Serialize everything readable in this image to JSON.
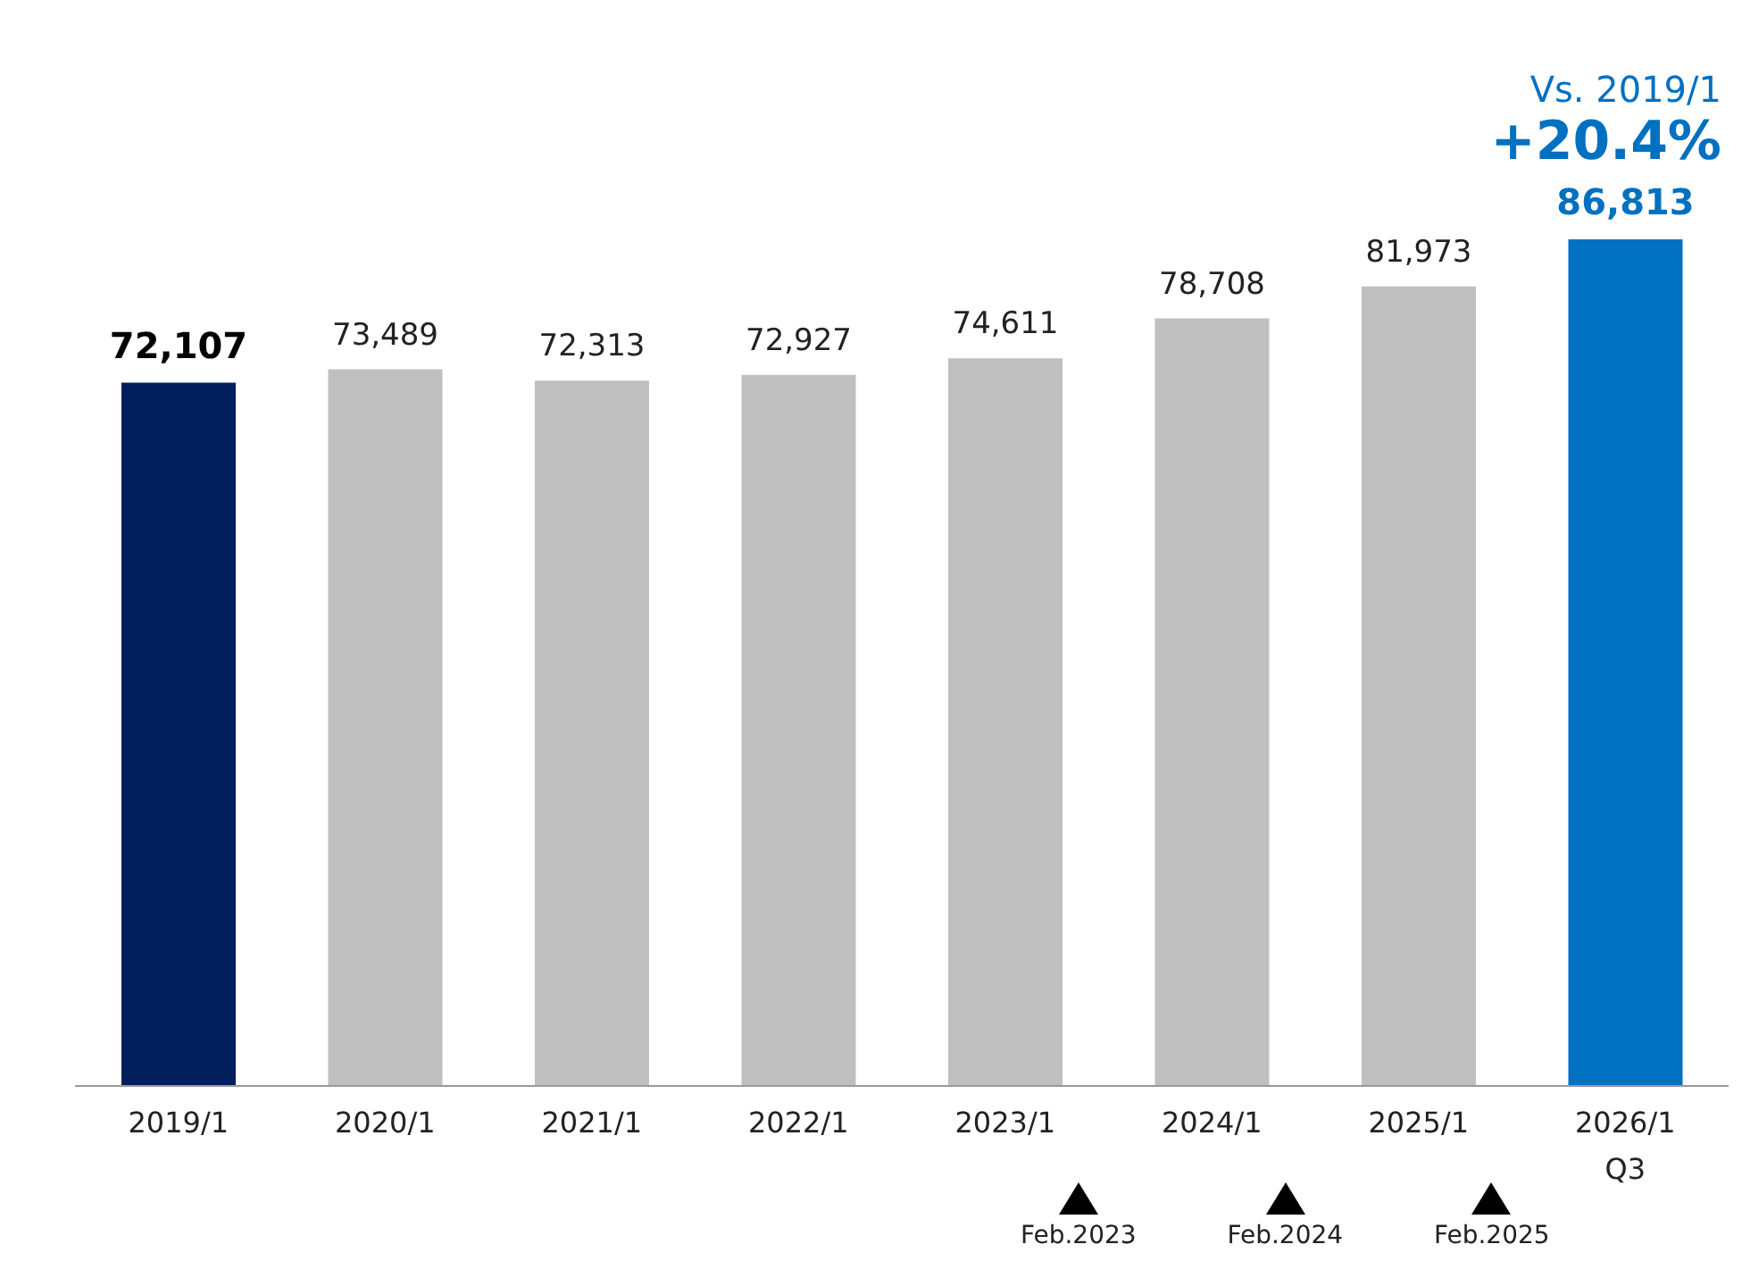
{
  "chart_data": {
    "type": "bar",
    "categories": [
      "2019/1",
      "2020/1",
      "2021/1",
      "2022/1",
      "2023/1",
      "2024/1",
      "2025/1",
      "2026/1\nQ3"
    ],
    "values": [
      72107,
      73489,
      72313,
      72927,
      74611,
      78708,
      81973,
      86813
    ],
    "value_labels": [
      "72,107",
      "73,489",
      "72,313",
      "72,927",
      "74,611",
      "78,708",
      "81,973",
      "86,813"
    ],
    "colors": [
      "#001f5b",
      "#bfbfbf",
      "#bfbfbf",
      "#bfbfbf",
      "#bfbfbf",
      "#bfbfbf",
      "#bfbfbf",
      "#0070c0"
    ],
    "grid": false,
    "legend": false,
    "annotations": [
      "Vs. 2019/1",
      "+20.4%",
      "Feb.2023",
      "Feb.2024",
      "Feb.2025"
    ]
  }
}
